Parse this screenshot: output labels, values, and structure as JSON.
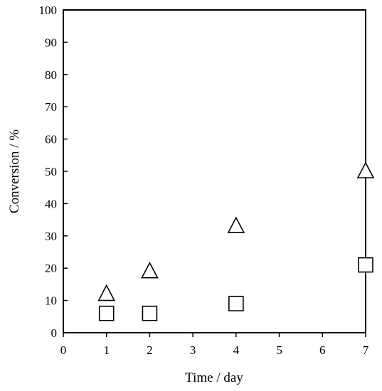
{
  "chart_data": {
    "type": "scatter",
    "xlabel": "Time / day",
    "ylabel": "Conversion / %",
    "xlim": [
      0,
      7
    ],
    "ylim": [
      0,
      100
    ],
    "xticks": [
      0,
      1,
      2,
      3,
      4,
      5,
      6,
      7
    ],
    "yticks": [
      0,
      10,
      20,
      30,
      40,
      50,
      60,
      70,
      80,
      90,
      100
    ],
    "xtick_labels": [
      "0",
      "1",
      "2",
      "3",
      "4",
      "5",
      "6",
      "7"
    ],
    "ytick_labels": [
      "0",
      "10",
      "20",
      "30",
      "40",
      "50",
      "60",
      "70",
      "80",
      "90",
      "100"
    ],
    "grid": false,
    "legend": "none",
    "series": [
      {
        "marker": "triangle-open",
        "color": "#000000",
        "points": [
          {
            "x": 1,
            "y": 12
          },
          {
            "x": 2,
            "y": 19
          },
          {
            "x": 4,
            "y": 33
          },
          {
            "x": 7,
            "y": 50
          }
        ]
      },
      {
        "marker": "square-open",
        "color": "#000000",
        "points": [
          {
            "x": 1,
            "y": 6
          },
          {
            "x": 2,
            "y": 6
          },
          {
            "x": 4,
            "y": 9
          },
          {
            "x": 7,
            "y": 21
          }
        ]
      }
    ]
  }
}
